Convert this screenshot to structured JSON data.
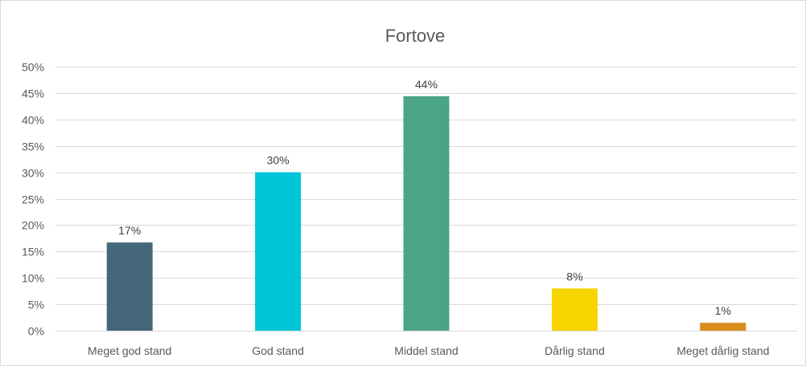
{
  "chart_data": {
    "type": "bar",
    "title": "Fortove",
    "xlabel": "",
    "ylabel": "",
    "categories": [
      "Meget god stand",
      "God stand",
      "Middel stand",
      "Dårlig stand",
      "Meget dårlig stand"
    ],
    "values": [
      0.167,
      0.3,
      0.444,
      0.08,
      0.015
    ],
    "data_labels": [
      "17%",
      "30%",
      "44%",
      "8%",
      "1%"
    ],
    "colors": [
      "#44687a",
      "#00c5d9",
      "#4ba585",
      "#f7d500",
      "#d98e1f"
    ],
    "ylim": [
      0,
      0.5
    ],
    "y_ticks": [
      0,
      0.05,
      0.1,
      0.15,
      0.2,
      0.25,
      0.3,
      0.35,
      0.4,
      0.45,
      0.5
    ],
    "y_tick_labels": [
      "0%",
      "5%",
      "10%",
      "15%",
      "20%",
      "25%",
      "30%",
      "35%",
      "40%",
      "45%",
      "50%"
    ],
    "grid": true,
    "legend": "none"
  }
}
